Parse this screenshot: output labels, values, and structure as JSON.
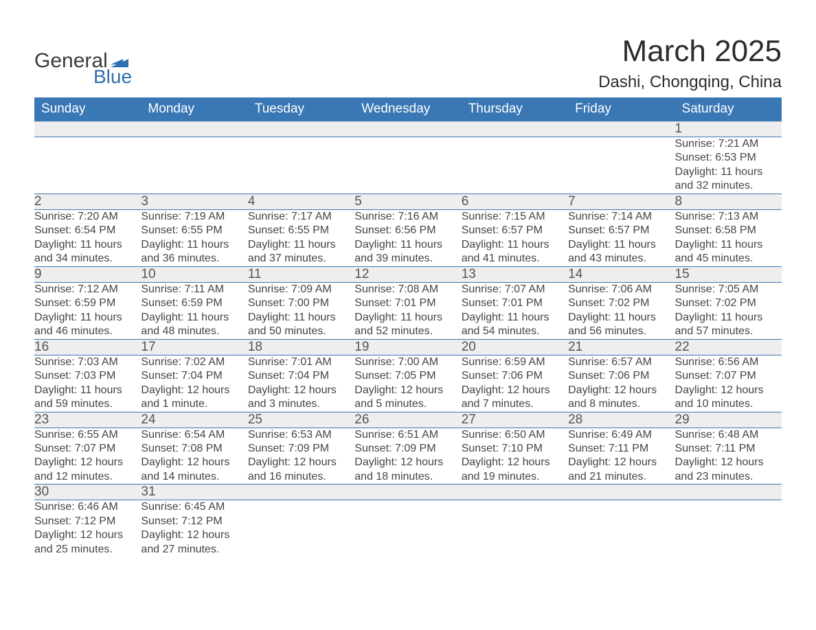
{
  "logo": {
    "text1": "General",
    "text2": "Blue",
    "flag_color": "#2f6fb0"
  },
  "title": "March 2025",
  "location": "Dashi, Chongqing, China",
  "colors": {
    "header_bg": "#3a77b5",
    "header_text": "#ffffff",
    "daynum_bg": "#eeeeee",
    "rule": "#3a77b5",
    "text": "#3a3a3a"
  },
  "weekdays": [
    "Sunday",
    "Monday",
    "Tuesday",
    "Wednesday",
    "Thursday",
    "Friday",
    "Saturday"
  ],
  "weeks": [
    [
      null,
      null,
      null,
      null,
      null,
      null,
      {
        "n": "1",
        "sr": "7:21 AM",
        "ss": "6:53 PM",
        "dl": "11 hours and 32 minutes."
      }
    ],
    [
      {
        "n": "2",
        "sr": "7:20 AM",
        "ss": "6:54 PM",
        "dl": "11 hours and 34 minutes."
      },
      {
        "n": "3",
        "sr": "7:19 AM",
        "ss": "6:55 PM",
        "dl": "11 hours and 36 minutes."
      },
      {
        "n": "4",
        "sr": "7:17 AM",
        "ss": "6:55 PM",
        "dl": "11 hours and 37 minutes."
      },
      {
        "n": "5",
        "sr": "7:16 AM",
        "ss": "6:56 PM",
        "dl": "11 hours and 39 minutes."
      },
      {
        "n": "6",
        "sr": "7:15 AM",
        "ss": "6:57 PM",
        "dl": "11 hours and 41 minutes."
      },
      {
        "n": "7",
        "sr": "7:14 AM",
        "ss": "6:57 PM",
        "dl": "11 hours and 43 minutes."
      },
      {
        "n": "8",
        "sr": "7:13 AM",
        "ss": "6:58 PM",
        "dl": "11 hours and 45 minutes."
      }
    ],
    [
      {
        "n": "9",
        "sr": "7:12 AM",
        "ss": "6:59 PM",
        "dl": "11 hours and 46 minutes."
      },
      {
        "n": "10",
        "sr": "7:11 AM",
        "ss": "6:59 PM",
        "dl": "11 hours and 48 minutes."
      },
      {
        "n": "11",
        "sr": "7:09 AM",
        "ss": "7:00 PM",
        "dl": "11 hours and 50 minutes."
      },
      {
        "n": "12",
        "sr": "7:08 AM",
        "ss": "7:01 PM",
        "dl": "11 hours and 52 minutes."
      },
      {
        "n": "13",
        "sr": "7:07 AM",
        "ss": "7:01 PM",
        "dl": "11 hours and 54 minutes."
      },
      {
        "n": "14",
        "sr": "7:06 AM",
        "ss": "7:02 PM",
        "dl": "11 hours and 56 minutes."
      },
      {
        "n": "15",
        "sr": "7:05 AM",
        "ss": "7:02 PM",
        "dl": "11 hours and 57 minutes."
      }
    ],
    [
      {
        "n": "16",
        "sr": "7:03 AM",
        "ss": "7:03 PM",
        "dl": "11 hours and 59 minutes."
      },
      {
        "n": "17",
        "sr": "7:02 AM",
        "ss": "7:04 PM",
        "dl": "12 hours and 1 minute."
      },
      {
        "n": "18",
        "sr": "7:01 AM",
        "ss": "7:04 PM",
        "dl": "12 hours and 3 minutes."
      },
      {
        "n": "19",
        "sr": "7:00 AM",
        "ss": "7:05 PM",
        "dl": "12 hours and 5 minutes."
      },
      {
        "n": "20",
        "sr": "6:59 AM",
        "ss": "7:06 PM",
        "dl": "12 hours and 7 minutes."
      },
      {
        "n": "21",
        "sr": "6:57 AM",
        "ss": "7:06 PM",
        "dl": "12 hours and 8 minutes."
      },
      {
        "n": "22",
        "sr": "6:56 AM",
        "ss": "7:07 PM",
        "dl": "12 hours and 10 minutes."
      }
    ],
    [
      {
        "n": "23",
        "sr": "6:55 AM",
        "ss": "7:07 PM",
        "dl": "12 hours and 12 minutes."
      },
      {
        "n": "24",
        "sr": "6:54 AM",
        "ss": "7:08 PM",
        "dl": "12 hours and 14 minutes."
      },
      {
        "n": "25",
        "sr": "6:53 AM",
        "ss": "7:09 PM",
        "dl": "12 hours and 16 minutes."
      },
      {
        "n": "26",
        "sr": "6:51 AM",
        "ss": "7:09 PM",
        "dl": "12 hours and 18 minutes."
      },
      {
        "n": "27",
        "sr": "6:50 AM",
        "ss": "7:10 PM",
        "dl": "12 hours and 19 minutes."
      },
      {
        "n": "28",
        "sr": "6:49 AM",
        "ss": "7:11 PM",
        "dl": "12 hours and 21 minutes."
      },
      {
        "n": "29",
        "sr": "6:48 AM",
        "ss": "7:11 PM",
        "dl": "12 hours and 23 minutes."
      }
    ],
    [
      {
        "n": "30",
        "sr": "6:46 AM",
        "ss": "7:12 PM",
        "dl": "12 hours and 25 minutes."
      },
      {
        "n": "31",
        "sr": "6:45 AM",
        "ss": "7:12 PM",
        "dl": "12 hours and 27 minutes."
      },
      null,
      null,
      null,
      null,
      null
    ]
  ],
  "labels": {
    "sunrise": "Sunrise: ",
    "sunset": "Sunset: ",
    "daylight": "Daylight: "
  }
}
